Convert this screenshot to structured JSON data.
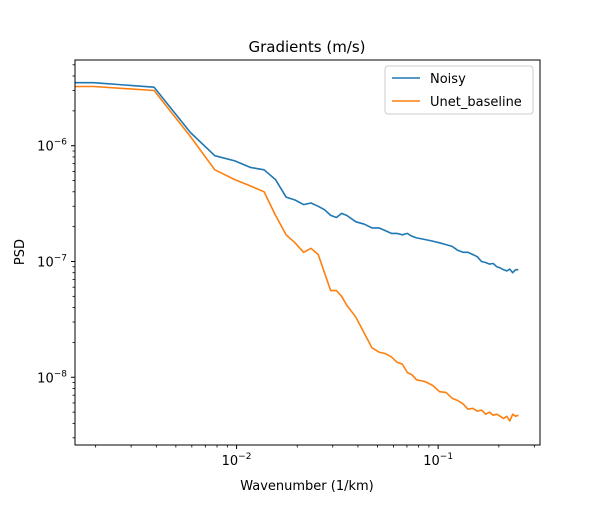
{
  "chart_data": {
    "type": "line",
    "title": "Gradients (m/s)",
    "xlabel": "Wavenumber (1/km)",
    "ylabel": "PSD",
    "xscale": "log",
    "yscale": "log",
    "xlim": [
      0.00158,
      0.32
    ],
    "ylim": [
      2.6e-09,
      5.5e-06
    ],
    "grid": false,
    "legend_position": "top-right",
    "x_ticks": [
      {
        "value": 0.01,
        "base": "10",
        "exp": "−2"
      },
      {
        "value": 0.1,
        "base": "10",
        "exp": "−1"
      }
    ],
    "y_ticks": [
      {
        "value": 1e-08,
        "base": "10",
        "exp": "−8"
      },
      {
        "value": 1e-07,
        "base": "10",
        "exp": "−7"
      },
      {
        "value": 1e-06,
        "base": "10",
        "exp": "−6"
      }
    ],
    "series": [
      {
        "name": "Noisy",
        "color": "#1f77b4",
        "x": [
          0.00158,
          0.00196,
          0.0039,
          0.0059,
          0.0078,
          0.0098,
          0.0117,
          0.0137,
          0.0156,
          0.0176,
          0.0195,
          0.0215,
          0.0234,
          0.0254,
          0.0273,
          0.0293,
          0.0313,
          0.0332,
          0.0352,
          0.0391,
          0.043,
          0.0469,
          0.0508,
          0.0547,
          0.0586,
          0.0625,
          0.0664,
          0.0703,
          0.0742,
          0.0781,
          0.0859,
          0.0938,
          0.1016,
          0.1094,
          0.1172,
          0.125,
          0.1328,
          0.1406,
          0.1484,
          0.1563,
          0.1641,
          0.1719,
          0.1797,
          0.1875,
          0.1953,
          0.2031,
          0.2109,
          0.2188,
          0.2266,
          0.2344,
          0.2422,
          0.25
        ],
        "y": [
          3.5e-06,
          3.5e-06,
          3.2e-06,
          1.3e-06,
          8.2e-07,
          7.4e-07,
          6.5e-07,
          6.2e-07,
          5.1e-07,
          3.6e-07,
          3.4e-07,
          3.1e-07,
          3.2e-07,
          3e-07,
          2.8e-07,
          2.5e-07,
          2.4e-07,
          2.6e-07,
          2.5e-07,
          2.2e-07,
          2.1e-07,
          1.95e-07,
          1.95e-07,
          1.85e-07,
          1.75e-07,
          1.75e-07,
          1.7e-07,
          1.75e-07,
          1.65e-07,
          1.6e-07,
          1.55e-07,
          1.5e-07,
          1.45e-07,
          1.4e-07,
          1.35e-07,
          1.25e-07,
          1.2e-07,
          1.2e-07,
          1.15e-07,
          1.1e-07,
          1e-07,
          9.8e-08,
          9.5e-08,
          9.6e-08,
          9e-08,
          8.8e-08,
          8.5e-08,
          8.3e-08,
          8.6e-08,
          8e-08,
          8.5e-08,
          8.5e-08
        ]
      },
      {
        "name": "Unet_baseline",
        "color": "#ff7f0e",
        "x": [
          0.00158,
          0.00196,
          0.0039,
          0.0059,
          0.0078,
          0.0098,
          0.0117,
          0.0137,
          0.0156,
          0.0176,
          0.0195,
          0.0215,
          0.0234,
          0.0254,
          0.0273,
          0.0293,
          0.0313,
          0.0332,
          0.0352,
          0.0391,
          0.043,
          0.0469,
          0.0508,
          0.0547,
          0.0586,
          0.0625,
          0.0664,
          0.0703,
          0.0742,
          0.0781,
          0.0859,
          0.0938,
          0.1016,
          0.1094,
          0.1172,
          0.125,
          0.1328,
          0.1406,
          0.1484,
          0.1563,
          0.1641,
          0.1719,
          0.1797,
          0.1875,
          0.1953,
          0.2031,
          0.2109,
          0.2188,
          0.2266,
          0.2344,
          0.2422,
          0.25
        ],
        "y": [
          3.25e-06,
          3.25e-06,
          3e-06,
          1.2e-06,
          6.2e-07,
          5.1e-07,
          4.5e-07,
          4e-07,
          2.5e-07,
          1.7e-07,
          1.45e-07,
          1.2e-07,
          1.3e-07,
          1.15e-07,
          8e-08,
          5.6e-08,
          5.6e-08,
          5e-08,
          4.2e-08,
          3.3e-08,
          2.4e-08,
          1.8e-08,
          1.65e-08,
          1.6e-08,
          1.5e-08,
          1.35e-08,
          1.3e-08,
          1.1e-08,
          1.05e-08,
          9.5e-09,
          9.2e-09,
          8.5e-09,
          7.5e-09,
          7.4e-09,
          6.6e-09,
          6.3e-09,
          5.9e-09,
          5.3e-09,
          5.4e-09,
          5.1e-09,
          5.2e-09,
          4.8e-09,
          5e-09,
          4.7e-09,
          4.8e-09,
          4.6e-09,
          4.4e-09,
          4.6e-09,
          4.2e-09,
          4.8e-09,
          4.6e-09,
          4.7e-09
        ]
      }
    ]
  }
}
